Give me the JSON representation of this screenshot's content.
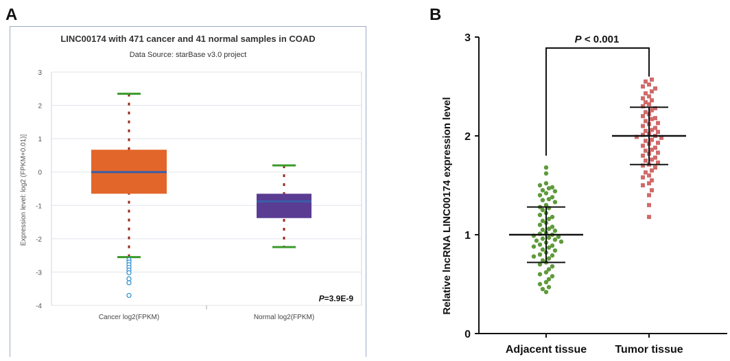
{
  "panel_labels": {
    "a": "A",
    "b": "B"
  },
  "chart_data": [
    {
      "type": "box",
      "title": "LINC00174 with 471 cancer and 41 normal samples in COAD",
      "subtitle": "Data Source: starBase v3.0 project",
      "ylabel": "Expression level: log2 (FPKM+0.01)]",
      "ylim": [
        -4,
        3
      ],
      "yticks": [
        3,
        2,
        1,
        0,
        -1,
        -2,
        -3,
        -4
      ],
      "categories": [
        "Cancer log2(FPKM)",
        "Normal log2(FPKM)"
      ],
      "boxes": [
        {
          "category": "Cancer log2(FPKM)",
          "whisker_low": -2.55,
          "q1": -0.65,
          "median": 0.0,
          "q3": 0.67,
          "whisker_high": 2.35,
          "outliers": [
            -2.63,
            -2.7,
            -2.78,
            -2.86,
            -2.94,
            -3.02,
            -3.2,
            -3.32,
            -3.7
          ],
          "color": "#e2662a"
        },
        {
          "category": "Normal log2(FPKM)",
          "whisker_low": -2.25,
          "q1": -1.38,
          "median": -0.88,
          "q3": -0.65,
          "whisker_high": 0.2,
          "outliers": [],
          "color": "#5a3c93"
        }
      ],
      "annotation": {
        "p_symbol": "P",
        "p_value": "=3.9E-9"
      },
      "grid": true
    },
    {
      "type": "scatter",
      "ylabel": "Relative lncRNA LINC00174 expression level",
      "ylim": [
        0,
        3
      ],
      "yticks": [
        0,
        1,
        2,
        3
      ],
      "categories": [
        "Adjacent tissue",
        "Tumor tissue"
      ],
      "groups": [
        {
          "category": "Adjacent tissue",
          "mean": 1.0,
          "sd_low": 0.72,
          "sd_high": 1.28,
          "color": "#5f9a3c",
          "points": [
            1.68,
            1.62,
            1.52,
            1.5,
            1.48,
            1.47,
            1.45,
            1.44,
            1.42,
            1.4,
            1.38,
            1.36,
            1.35,
            1.33,
            1.3,
            1.28,
            1.27,
            1.25,
            1.22,
            1.2,
            1.18,
            1.16,
            1.14,
            1.12,
            1.1,
            1.08,
            1.06,
            1.05,
            1.04,
            1.02,
            1.01,
            1.0,
            0.99,
            0.98,
            0.97,
            0.96,
            0.95,
            0.94,
            0.93,
            0.92,
            0.9,
            0.89,
            0.88,
            0.87,
            0.85,
            0.84,
            0.82,
            0.8,
            0.79,
            0.78,
            0.76,
            0.74,
            0.72,
            0.7,
            0.68,
            0.65,
            0.62,
            0.6,
            0.58,
            0.55,
            0.52,
            0.5,
            0.47,
            0.45,
            0.42
          ]
        },
        {
          "category": "Tumor tissue",
          "mean": 2.0,
          "sd_low": 1.71,
          "sd_high": 2.29,
          "color": "#d06a6a",
          "points": [
            2.57,
            2.55,
            2.52,
            2.5,
            2.48,
            2.45,
            2.43,
            2.4,
            2.38,
            2.36,
            2.34,
            2.32,
            2.3,
            2.28,
            2.26,
            2.24,
            2.22,
            2.2,
            2.18,
            2.17,
            2.15,
            2.13,
            2.12,
            2.1,
            2.08,
            2.06,
            2.05,
            2.04,
            2.02,
            2.01,
            2.0,
            1.99,
            1.98,
            1.96,
            1.95,
            1.93,
            1.92,
            1.9,
            1.88,
            1.86,
            1.85,
            1.83,
            1.82,
            1.8,
            1.78,
            1.76,
            1.75,
            1.73,
            1.71,
            1.7,
            1.68,
            1.65,
            1.63,
            1.6,
            1.58,
            1.55,
            1.52,
            1.5,
            1.45,
            1.4,
            1.3,
            1.18
          ]
        }
      ],
      "annotation": {
        "p_symbol": "P",
        "p_text": "< 0.001"
      }
    }
  ]
}
